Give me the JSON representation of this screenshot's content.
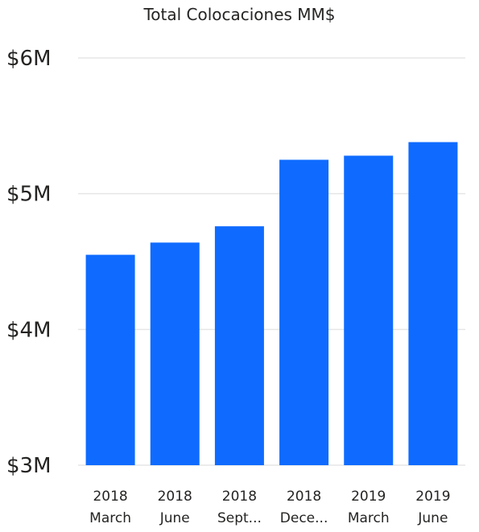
{
  "chart_data": {
    "type": "bar",
    "title": "Total Colocaciones MM$",
    "xlabel": "",
    "ylabel": "",
    "categories": [
      [
        "2018",
        "March"
      ],
      [
        "2018",
        "June"
      ],
      [
        "2018",
        "Sept..."
      ],
      [
        "2018",
        "Dece..."
      ],
      [
        "2019",
        "March"
      ],
      [
        "2019",
        "June"
      ]
    ],
    "values": [
      4.55,
      4.64,
      4.76,
      5.25,
      5.28,
      5.38
    ],
    "value_unit": "millions USD",
    "ylim": [
      3,
      6
    ],
    "yticks": [
      {
        "value": 6,
        "label": "$6M"
      },
      {
        "value": 5,
        "label": "$5M"
      },
      {
        "value": 4,
        "label": "$4M"
      },
      {
        "value": 3,
        "label": "$3M"
      }
    ],
    "grid": true,
    "legend": "none",
    "colors": {
      "bar": "#0F6BFF",
      "grid": "#E6E6E6",
      "text": "#252423"
    }
  }
}
